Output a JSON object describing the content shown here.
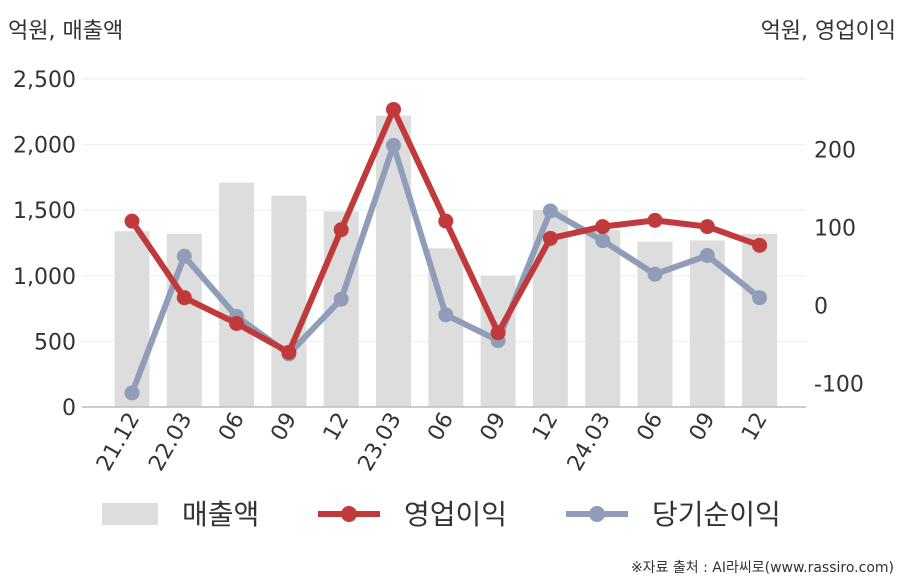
{
  "chart_data": {
    "type": "bar+line",
    "left_unit_label": "억원, 매출액",
    "right_unit_label": "억원, 영업이익",
    "categories": [
      "21.12",
      "22.03",
      "06",
      "09",
      "12",
      "23.03",
      "06",
      "09",
      "12",
      "24.03",
      "06",
      "09",
      "12"
    ],
    "left_axis": {
      "ylim": [
        0,
        2500
      ],
      "ticks": [
        "0",
        "500",
        "1,000",
        "1,500",
        "2,000",
        "2,500"
      ]
    },
    "right_axis": {
      "ylim": [
        -130,
        290
      ],
      "ticks": [
        "-100",
        "0",
        "100",
        "200"
      ]
    },
    "series": [
      {
        "name": "매출액",
        "kind": "bar",
        "axis": "left",
        "color": "#dddddd",
        "values": [
          1340,
          1320,
          1710,
          1610,
          1490,
          2220,
          1210,
          1000,
          1500,
          1350,
          1260,
          1270,
          1320
        ]
      },
      {
        "name": "영업이익",
        "kind": "line",
        "axis": "right",
        "color": "#c0393b",
        "values": [
          108,
          10,
          -23,
          -60,
          97,
          251,
          108,
          -35,
          86,
          101,
          109,
          101,
          77
        ]
      },
      {
        "name": "당기순이익",
        "kind": "line",
        "axis": "right",
        "color": "#909db8",
        "values": [
          -112,
          63,
          -14,
          -62,
          8,
          205,
          -12,
          -45,
          121,
          83,
          40,
          64,
          10
        ]
      }
    ],
    "grid": true,
    "legend": "bottom",
    "source": "※자료 출처 : AI라씨로(www.rassiro.com)"
  }
}
